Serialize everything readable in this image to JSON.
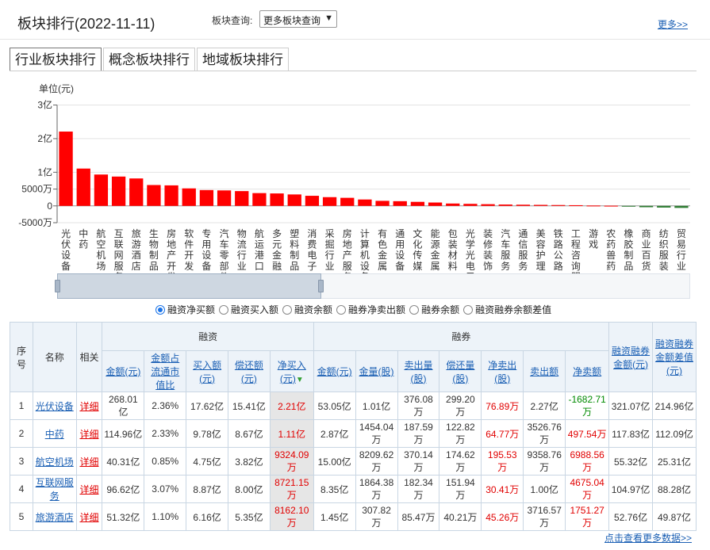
{
  "page": {
    "title": "板块排行(2022-11-11)",
    "query_label": "板块查询:",
    "query_select": "更多板块查询",
    "more_link": "更多>>",
    "footer_link": "点击查看更多数据>>"
  },
  "tabs": [
    "行业板块排行",
    "概念板块排行",
    "地域板块排行"
  ],
  "radios": [
    "融资净买额",
    "融资买入额",
    "融资余额",
    "融券净卖出额",
    "融券余额",
    "融资融券余额差值"
  ],
  "chart_data": {
    "type": "bar",
    "ylabel": "单位(元)",
    "yticks": [
      {
        "value": 30000,
        "label": "3亿"
      },
      {
        "value": 20000,
        "label": "2亿"
      },
      {
        "value": 10000,
        "label": "1亿"
      },
      {
        "value": 5000,
        "label": "5000万"
      },
      {
        "value": 0,
        "label": "0"
      },
      {
        "value": -5000,
        "label": "-5000万"
      }
    ],
    "ylim": [
      -5000,
      30000
    ],
    "unit_note": "values in 万元",
    "categories": [
      "光伏设备",
      "中药",
      "航空机场",
      "互联网服务",
      "旅游酒店",
      "生物制品",
      "房地产开发",
      "软件开发",
      "专用设备",
      "汽车零部件",
      "物流行业",
      "航运港口",
      "多元金融",
      "塑料制品",
      "消费电子",
      "采掘行业",
      "房地产服务",
      "计算机设备",
      "有色金属",
      "通用设备",
      "文化传媒",
      "能源金属",
      "包装材料",
      "光学光电子",
      "装修装饰",
      "汽车服务",
      "通信服务",
      "美容护理",
      "铁路公路",
      "工程咨询服务",
      "游戏",
      "农药兽药",
      "橡胶制品",
      "商业百货",
      "纺织服装",
      "贸易行业"
    ],
    "values": [
      22100,
      11100,
      9324,
      8721,
      8162,
      6200,
      6100,
      5200,
      4700,
      4600,
      4400,
      3800,
      3700,
      3400,
      3000,
      2600,
      2400,
      1900,
      1500,
      1400,
      1200,
      1000,
      700,
      600,
      500,
      400,
      350,
      300,
      250,
      200,
      100,
      50,
      -200,
      -400,
      -500,
      -600
    ],
    "bar_color_positive": "#ff0000",
    "bar_color_negative": "#2e7d32"
  },
  "table": {
    "group_headers": {
      "rongzi": "融资",
      "rongquan": "融券"
    },
    "headers": {
      "seq": "序号",
      "name": "名称",
      "related": "相关",
      "rz": [
        "金额(元)",
        "金额占流通市值比",
        "买入额(元)",
        "偿还额(元)",
        "净买入(元)"
      ],
      "rq": [
        "金额(元)",
        "金量(股)",
        "卖出量(股)",
        "偿还量(股)",
        "净卖出(股)",
        "卖出额",
        "净卖额"
      ],
      "total": "融资融券金额(元)",
      "diff": "融资融券金额差值(元)"
    },
    "detail_label": "详细",
    "rows": [
      {
        "seq": "1",
        "name": "光伏设备",
        "rz": [
          "268.01亿",
          "2.36%",
          "17.62亿",
          "15.41亿",
          "2.21亿"
        ],
        "rq": [
          "53.05亿",
          "1.01亿",
          "376.08万",
          "299.20万",
          "76.89万",
          "2.27亿",
          "-1682.71万"
        ],
        "total": "321.07亿",
        "diff": "214.96亿"
      },
      {
        "seq": "2",
        "name": "中药",
        "rz": [
          "114.96亿",
          "2.33%",
          "9.78亿",
          "8.67亿",
          "1.11亿"
        ],
        "rq": [
          "2.87亿",
          "1454.04万",
          "187.59万",
          "122.82万",
          "64.77万",
          "3526.76万",
          "497.54万"
        ],
        "total": "117.83亿",
        "diff": "112.09亿"
      },
      {
        "seq": "3",
        "name": "航空机场",
        "rz": [
          "40.31亿",
          "0.85%",
          "4.75亿",
          "3.82亿",
          "9324.09万"
        ],
        "rq": [
          "15.00亿",
          "8209.62万",
          "370.14万",
          "174.62万",
          "195.53万",
          "9358.76万",
          "6988.56万"
        ],
        "total": "55.32亿",
        "diff": "25.31亿"
      },
      {
        "seq": "4",
        "name": "互联网服务",
        "rz": [
          "96.62亿",
          "3.07%",
          "8.87亿",
          "8.00亿",
          "8721.15万"
        ],
        "rq": [
          "8.35亿",
          "1864.38万",
          "182.34万",
          "151.94万",
          "30.41万",
          "1.00亿",
          "4675.04万"
        ],
        "total": "104.97亿",
        "diff": "88.28亿"
      },
      {
        "seq": "5",
        "name": "旅游酒店",
        "rz": [
          "51.32亿",
          "1.10%",
          "6.16亿",
          "5.35亿",
          "8162.10万"
        ],
        "rq": [
          "1.45亿",
          "307.82万",
          "85.47万",
          "40.21万",
          "45.26万",
          "3716.57万",
          "1751.27万"
        ],
        "total": "52.76亿",
        "diff": "49.87亿"
      }
    ]
  }
}
